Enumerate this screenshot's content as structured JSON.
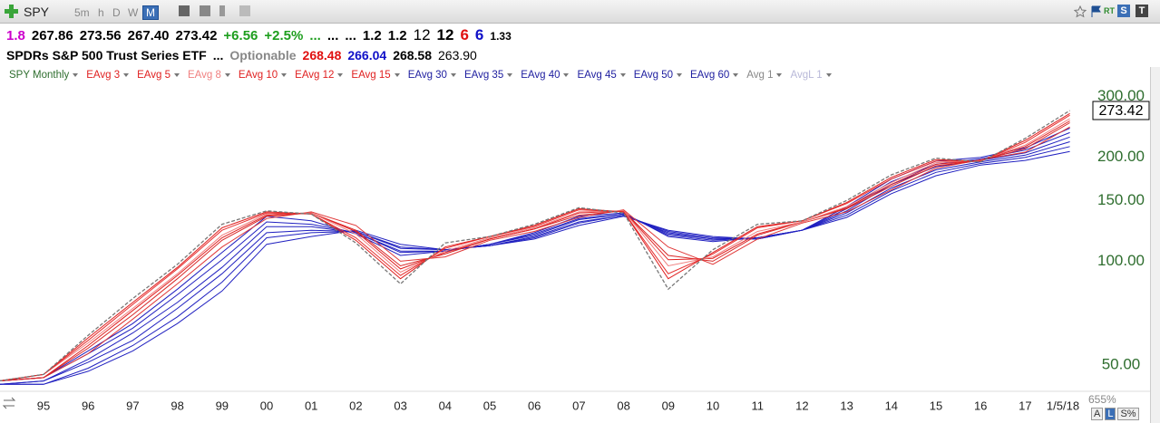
{
  "toolbar": {
    "symbol": "SPY",
    "intervals": [
      "5m",
      "h",
      "D",
      "W",
      "M"
    ],
    "active_interval": 4,
    "status": [
      "RT",
      "S",
      "T"
    ]
  },
  "quote": [
    {
      "text": "1.8",
      "color": "#cc00cc"
    },
    {
      "text": "267.86",
      "color": "#000"
    },
    {
      "text": "273.56",
      "color": "#000"
    },
    {
      "text": "267.40",
      "color": "#000"
    },
    {
      "text": "273.42",
      "color": "#000"
    },
    {
      "text": "+6.56",
      "color": "#1e9e1e"
    },
    {
      "text": "+2.5%",
      "color": "#1e9e1e"
    },
    {
      "text": "...",
      "color": "#1e9e1e"
    },
    {
      "text": "...",
      "color": "#000"
    },
    {
      "text": "...",
      "color": "#000"
    },
    {
      "text": "1.2",
      "color": "#000"
    },
    {
      "text": "1.2",
      "color": "#000"
    },
    {
      "text": "12",
      "color": "#000",
      "weight": "normal",
      "size": 17
    },
    {
      "text": "12",
      "color": "#000",
      "size": 17
    },
    {
      "text": "6",
      "color": "#e01010",
      "size": 17
    },
    {
      "text": "6",
      "color": "#1010c8",
      "size": 17
    },
    {
      "text": "1.33",
      "color": "#000",
      "size": 12
    }
  ],
  "name_row": [
    {
      "text": "SPDRs S&P 500 Trust Series ETF",
      "color": "#000"
    },
    {
      "text": "...",
      "color": "#000"
    },
    {
      "text": "Optionable",
      "color": "#888"
    },
    {
      "text": "268.48",
      "color": "#e01010"
    },
    {
      "text": "266.04",
      "color": "#1010c8"
    },
    {
      "text": "268.58",
      "color": "#000"
    },
    {
      "text": "263.90",
      "color": "#000",
      "weight": "normal"
    }
  ],
  "chart_data": {
    "type": "line",
    "log_scale": true,
    "categories": [
      null,
      "95",
      "96",
      "97",
      "98",
      "99",
      "00",
      "01",
      "02",
      "03",
      "04",
      "05",
      "06",
      "07",
      "08",
      "09",
      "10",
      "11",
      "12",
      "13",
      "14",
      "15",
      "16",
      "17",
      "1/5/18"
    ],
    "ylim": [
      42,
      318
    ],
    "yticks": [
      {
        "value": 50,
        "label": "50.00"
      },
      {
        "value": 100,
        "label": "100.00"
      },
      {
        "value": 150,
        "label": "150.00"
      },
      {
        "value": 200,
        "label": "200.00"
      },
      {
        "value": 300,
        "label": "300.00"
      }
    ],
    "last_price_label": "273.42",
    "series": [
      {
        "name": "SPY Monthly",
        "color": "#777777",
        "label_color": "#2f6e2f",
        "dashed": true,
        "values": [
          45,
          47,
          61,
          78,
          98,
          128,
          140,
          137,
          113,
          86,
          113,
          118,
          128,
          143,
          138,
          83,
          108,
          128,
          131,
          150,
          178,
          199,
          194,
          227,
          273.42
        ]
      },
      {
        "name": "EAvg 3",
        "color": "#e02020",
        "label_color": "#e02020",
        "values": [
          45,
          47,
          60,
          76,
          96,
          125,
          139,
          137,
          115,
          89,
          110,
          118,
          127,
          142,
          139,
          89,
          106,
          126,
          131,
          148,
          175,
          197,
          195,
          224,
          268
        ]
      },
      {
        "name": "EAvg 5",
        "color": "#e63030",
        "label_color": "#e02020",
        "values": [
          45,
          47,
          59,
          75,
          95,
          123,
          138,
          137,
          117,
          91,
          109,
          118,
          126,
          141,
          139,
          92,
          105,
          125,
          131,
          147,
          173,
          195,
          195,
          221,
          265
        ]
      },
      {
        "name": "EAvg 8",
        "color": "#f08080",
        "label_color": "#f08080",
        "values": [
          45,
          47,
          58,
          73,
          92,
          119,
          137,
          138,
          120,
          93,
          107,
          117,
          125,
          139,
          140,
          97,
          103,
          122,
          130,
          144,
          169,
          193,
          196,
          217,
          259
        ]
      },
      {
        "name": "EAvg 10",
        "color": "#e02020",
        "label_color": "#e02020",
        "values": [
          45,
          46,
          57,
          72,
          91,
          117,
          136,
          138,
          122,
          95,
          106,
          116,
          124,
          138,
          140,
          101,
          102,
          120,
          130,
          143,
          167,
          191,
          196,
          215,
          255
        ]
      },
      {
        "name": "EAvg 12",
        "color": "#d82828",
        "label_color": "#e02020",
        "values": [
          45,
          46,
          56,
          70,
          89,
          115,
          135,
          138,
          123,
          97,
          105,
          116,
          124,
          136,
          140,
          104,
          100,
          119,
          130,
          142,
          165,
          189,
          196,
          212,
          252
        ]
      },
      {
        "name": "EAvg 15",
        "color": "#e03838",
        "label_color": "#e02020",
        "values": [
          45,
          46,
          54,
          68,
          86,
          110,
          133,
          139,
          127,
          100,
          103,
          115,
          122,
          134,
          141,
          110,
          98,
          116,
          129,
          139,
          161,
          186,
          197,
          207,
          245
        ]
      },
      {
        "name": "EAvg 30",
        "color": "#2020c0",
        "label_color": "#2020a0",
        "values": [
          45,
          46,
          55,
          66,
          83,
          106,
          135,
          131,
          120,
          104,
          107,
          112,
          121,
          135,
          138,
          118,
          114,
          117,
          123,
          144,
          173,
          195,
          200,
          213,
          243
        ]
      },
      {
        "name": "EAvg 35",
        "color": "#2020c0",
        "label_color": "#2020a0",
        "values": [
          45,
          46,
          54,
          64,
          80,
          101,
          130,
          128,
          121,
          106,
          107,
          112,
          120,
          133,
          137,
          119,
          115,
          117,
          123,
          142,
          170,
          191,
          198,
          210,
          236
        ]
      },
      {
        "name": "EAvg 40",
        "color": "#2020c0",
        "label_color": "#2020a0",
        "values": [
          44,
          45,
          52,
          62,
          76,
          96,
          126,
          126,
          121,
          107,
          107,
          112,
          119,
          132,
          137,
          120,
          116,
          117,
          123,
          140,
          167,
          188,
          196,
          206,
          229
        ]
      },
      {
        "name": "EAvg 45",
        "color": "#2020c0",
        "label_color": "#2020a0",
        "values": [
          44,
          45,
          51,
          59,
          73,
          92,
          121,
          123,
          122,
          109,
          108,
          111,
          118,
          130,
          136,
          121,
          116,
          116,
          123,
          138,
          163,
          184,
          194,
          203,
          222
        ]
      },
      {
        "name": "EAvg 50",
        "color": "#2020c0",
        "label_color": "#2020a0",
        "values": [
          44,
          44,
          49,
          57,
          69,
          87,
          117,
          121,
          122,
          110,
          108,
          111,
          117,
          129,
          136,
          122,
          117,
          116,
          123,
          136,
          160,
          181,
          192,
          200,
          215
        ]
      },
      {
        "name": "EAvg 60",
        "color": "#2020c0",
        "label_color": "#2020a0",
        "values": [
          44,
          44,
          48,
          55,
          66,
          82,
          112,
          118,
          123,
          112,
          108,
          111,
          116,
          127,
          135,
          123,
          118,
          116,
          123,
          134,
          157,
          177,
          190,
          196,
          208
        ]
      }
    ],
    "inactive_studies": [
      {
        "name": "Avg 1",
        "color": "#888888"
      },
      {
        "name": "AvgL 1",
        "color": "#b8b8d8"
      }
    ]
  },
  "footer": {
    "zoom": "655%",
    "scale_buttons": [
      "A",
      "L",
      "S%"
    ],
    "active_button": 1
  }
}
